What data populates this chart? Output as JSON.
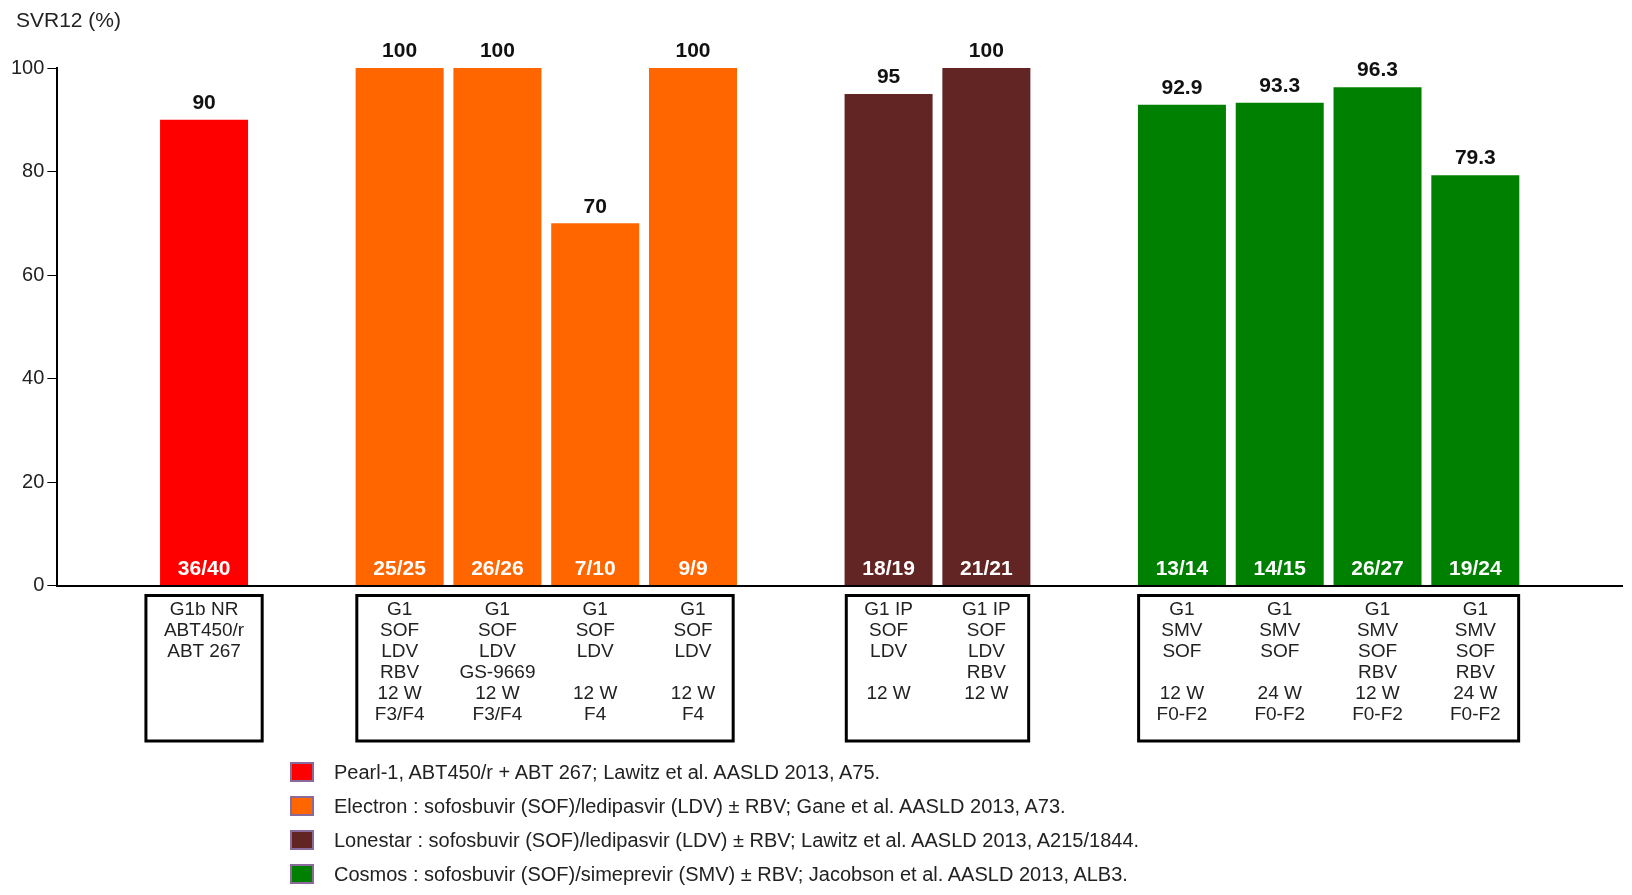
{
  "chart_data": {
    "type": "bar",
    "ylabel": "SVR12 (%)",
    "categories": [
      null,
      "G1b NR\nABT450/r\nABT 267",
      null,
      "G1\nSOF\nLDV\nRBV\n12 W\nF3/F4",
      "G1\nSOF\nLDV\nGS-9669\n12 W\nF3/F4",
      "G1\nSOF\nLDV\n\n12 W\nF4",
      "G1\nSOF\nLDV\n\n12 W\nF4",
      null,
      "G1 IP\nSOF\nLDV\n\n12 W",
      "G1 IP\nSOF\nLDV\nRBV\n12 W",
      null,
      "G1\nSMV\nSOF\n\n12 W\nF0-F2",
      "G1\nSMV\nSOF\n\n24 W\nF0-F2",
      "G1\nSMV\nSOF\nRBV\n12 W\nF0-F2",
      "G1\nSMV\nSOF\nRBV\n24 W\nF0-F2",
      null
    ],
    "series": [
      {
        "name": "Pearl-1, ABT450/r + ABT 267; Lawitz et al. AASLD 2013, A75.",
        "color": "#ff0000",
        "values": [
          null,
          90,
          null,
          null,
          null,
          null,
          null,
          null,
          null,
          null,
          null,
          null,
          null,
          null,
          null,
          null
        ]
      },
      {
        "name": "Electron : sofosbuvir (SOF)/ledipasvir (LDV) ± RBV; Gane et al. AASLD 2013, A73.",
        "color": "#ff6600",
        "values": [
          null,
          null,
          null,
          100,
          100,
          70,
          100,
          null,
          null,
          null,
          null,
          null,
          null,
          null,
          null,
          null
        ]
      },
      {
        "name": "Lonestar : sofosbuvir (SOF)/ledipasvir (LDV) ± RBV; Lawitz et al. AASLD 2013, A215/1844.",
        "color": "#632523",
        "values": [
          null,
          null,
          null,
          null,
          null,
          null,
          null,
          null,
          95,
          100,
          null,
          null,
          null,
          null,
          null,
          null
        ]
      },
      {
        "name": "Cosmos : sofosbuvir (SOF)/simeprevir (SMV) ± RBV; Jacobson et al. AASLD 2013, ALB3.",
        "color": "#008000",
        "values": [
          null,
          null,
          null,
          null,
          null,
          null,
          null,
          null,
          null,
          null,
          null,
          92.9,
          93.3,
          96.3,
          79.3,
          null
        ]
      }
    ],
    "ylim": [
      0,
      100
    ],
    "yticks": [
      0,
      20,
      40,
      60,
      80,
      100
    ],
    "grid": false,
    "data_labels": true,
    "legend": "bottom",
    "annotations": [
      "36/40",
      "25/25",
      "26/26",
      "7/10",
      "9/9",
      "18/19",
      "21/21",
      "13/14",
      "14/15",
      "26/27",
      "19/24"
    ]
  }
}
